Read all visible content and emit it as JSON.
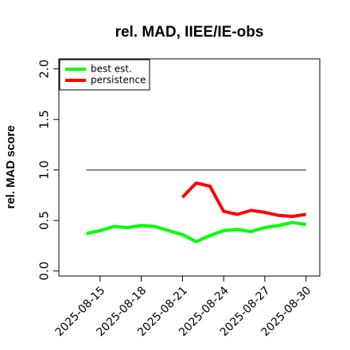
{
  "chart_data": {
    "type": "line",
    "title": "rel. MAD, IIEE/IE-obs",
    "ylabel": "rel. MAD score",
    "xlabel": "",
    "xlim": [
      "2025-08-12",
      "2025-08-31"
    ],
    "ylim": [
      -0.05,
      2.1
    ],
    "y_ticks": [
      "0.0",
      "0.5",
      "1.0",
      "1.5",
      "2.0"
    ],
    "x_ticks": [
      "2025-08-15",
      "2025-08-18",
      "2025-08-21",
      "2025-08-24",
      "2025-08-27",
      "2025-08-30"
    ],
    "legend_position": "top-left",
    "reference_line": {
      "y": 1.0,
      "from": "2025-08-14",
      "to": "2025-08-30",
      "color": "#555555"
    },
    "series": [
      {
        "name": "best est.",
        "color": "#00ff00",
        "points": [
          [
            "2025-08-14",
            0.37
          ],
          [
            "2025-08-15",
            0.4
          ],
          [
            "2025-08-16",
            0.44
          ],
          [
            "2025-08-17",
            0.43
          ],
          [
            "2025-08-18",
            0.45
          ],
          [
            "2025-08-19",
            0.44
          ],
          [
            "2025-08-20",
            0.4
          ],
          [
            "2025-08-21",
            0.36
          ],
          [
            "2025-08-22",
            0.29
          ],
          [
            "2025-08-23",
            0.35
          ],
          [
            "2025-08-24",
            0.4
          ],
          [
            "2025-08-25",
            0.41
          ],
          [
            "2025-08-26",
            0.39
          ],
          [
            "2025-08-27",
            0.43
          ],
          [
            "2025-08-28",
            0.45
          ],
          [
            "2025-08-29",
            0.48
          ],
          [
            "2025-08-30",
            0.46
          ]
        ]
      },
      {
        "name": "persistence",
        "color": "#ff0000",
        "points": [
          [
            "2025-08-21",
            0.73
          ],
          [
            "2025-08-22",
            0.87
          ],
          [
            "2025-08-23",
            0.84
          ],
          [
            "2025-08-24",
            0.59
          ],
          [
            "2025-08-25",
            0.56
          ],
          [
            "2025-08-26",
            0.6
          ],
          [
            "2025-08-27",
            0.58
          ],
          [
            "2025-08-28",
            0.55
          ],
          [
            "2025-08-29",
            0.54
          ],
          [
            "2025-08-30",
            0.56
          ]
        ]
      }
    ]
  }
}
